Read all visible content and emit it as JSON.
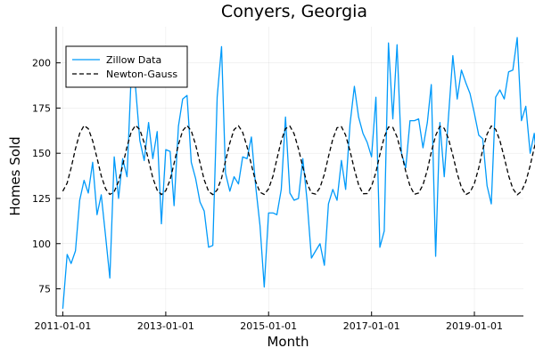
{
  "chart_data": {
    "type": "line",
    "title": "Conyers, Georgia",
    "xlabel": "Month",
    "ylabel": "Homes Sold",
    "x_start": "2011-01-01",
    "x_step": "1 month",
    "xlim": [
      "2010-11-15",
      "2019-12-15"
    ],
    "ylim": [
      60,
      220
    ],
    "xticks": [
      "2011-01-01",
      "2013-01-01",
      "2015-01-01",
      "2017-01-01",
      "2019-01-01"
    ],
    "yticks": [
      75,
      100,
      125,
      150,
      175,
      200
    ],
    "grid": true,
    "legend_position": "top-left",
    "colors": {
      "zillow": "#009AFA",
      "newton": "#000000"
    },
    "series": [
      {
        "name": "Zillow Data",
        "style": "solid",
        "values": [
          64,
          94,
          89,
          96,
          124,
          135,
          128,
          145,
          116,
          127,
          104,
          81,
          148,
          125,
          147,
          137,
          194,
          186,
          157,
          146,
          167,
          147,
          162,
          111,
          152,
          151,
          121,
          165,
          180,
          182,
          145,
          136,
          123,
          118,
          98,
          99,
          181,
          209,
          139,
          129,
          137,
          133,
          148,
          147,
          159,
          132,
          110,
          76,
          117,
          117,
          116,
          130,
          170,
          128,
          124,
          125,
          147,
          124,
          92,
          96,
          100,
          88,
          122,
          130,
          124,
          146,
          130,
          166,
          187,
          170,
          161,
          156,
          148,
          181,
          98,
          107,
          211,
          169,
          210,
          150,
          142,
          168,
          168,
          169,
          153,
          167,
          188,
          93,
          167,
          137,
          170,
          204,
          180,
          196,
          189,
          183,
          172,
          160,
          158,
          132,
          122,
          181,
          185,
          180,
          195,
          196,
          214,
          168,
          176,
          150,
          161,
          134
        ]
      },
      {
        "name": "Newton-Gauss",
        "style": "dashed",
        "values": [
          129.0,
          133.5,
          141.9,
          152.5,
          161.0,
          165.3,
          163.6,
          156.9,
          147.4,
          137.5,
          130.3,
          127.2,
          128.7,
          134.4,
          143.2,
          153.6,
          161.9,
          165.4,
          163.0,
          155.8,
          146.1,
          136.4,
          129.6,
          127.1,
          129.3,
          135.3,
          144.4,
          154.8,
          162.5,
          165.3,
          162.4,
          154.7,
          144.8,
          135.3,
          128.9,
          127.1,
          129.7,
          136.2,
          145.6,
          155.8,
          163.1,
          165.2,
          161.6,
          153.6,
          143.6,
          134.4,
          128.4,
          127.2,
          130.3,
          137.3,
          146.8,
          156.9,
          163.6,
          165.0,
          160.8,
          152.5,
          142.3,
          133.4,
          128.0,
          127.4,
          131.0,
          138.4,
          148.1,
          157.9,
          164.1,
          164.7,
          160.0,
          151.3,
          141.1,
          132.6,
          127.6,
          127.7,
          131.7,
          139.5,
          149.3,
          158.9,
          164.5,
          164.3,
          159.0,
          150.1,
          139.9,
          131.9,
          127.3,
          128.0,
          132.5,
          140.7,
          150.6,
          159.8,
          164.9,
          163.8,
          158.0,
          148.9,
          138.8,
          131.1,
          127.1,
          128.4,
          133.3,
          141.9,
          151.9,
          160.6,
          165.1,
          163.2,
          157.0,
          147.6,
          137.6,
          130.4,
          127.0,
          128.9,
          134.3,
          143.1,
          153.1,
          161.4
        ]
      }
    ]
  }
}
